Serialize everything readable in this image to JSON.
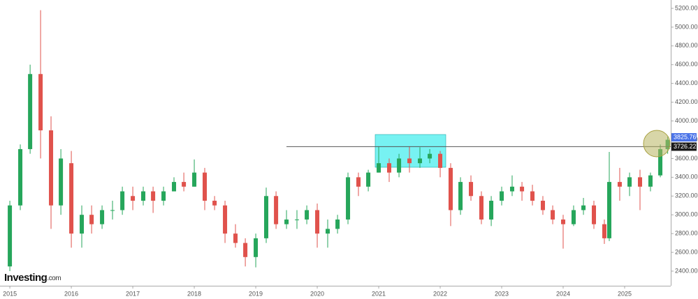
{
  "chart_data": {
    "type": "candlestick",
    "logo": {
      "brand": "Investing",
      "suffix": ".com"
    },
    "x": [
      2015.0,
      2015.17,
      2015.33,
      2015.5,
      2015.67,
      2015.83,
      2016.0,
      2016.17,
      2016.33,
      2016.5,
      2016.67,
      2016.83,
      2017.0,
      2017.17,
      2017.33,
      2017.5,
      2017.67,
      2017.83,
      2018.0,
      2018.17,
      2018.33,
      2018.5,
      2018.67,
      2018.83,
      2019.0,
      2019.17,
      2019.33,
      2019.5,
      2019.67,
      2019.83,
      2020.0,
      2020.17,
      2020.33,
      2020.5,
      2020.67,
      2020.83,
      2021.0,
      2021.17,
      2021.33,
      2021.5,
      2021.67,
      2021.83,
      2022.0,
      2022.17,
      2022.33,
      2022.5,
      2022.67,
      2022.83,
      2023.0,
      2023.17,
      2023.33,
      2023.5,
      2023.67,
      2023.83,
      2024.0,
      2024.17,
      2024.33,
      2024.5,
      2024.67,
      2024.75,
      2024.92,
      2025.08,
      2025.25,
      2025.42,
      2025.58,
      2025.7
    ],
    "open": [
      2450,
      3100,
      3700,
      4500,
      3900,
      3100,
      3550,
      2800,
      3000,
      2900,
      3050,
      3050,
      3200,
      3150,
      3250,
      3150,
      3250,
      3350,
      3300,
      3450,
      3150,
      3100,
      2800,
      2700,
      2550,
      2750,
      3200,
      2900,
      2950,
      2950,
      3050,
      2800,
      2850,
      2950,
      3400,
      3300,
      3450,
      3550,
      3450,
      3600,
      3550,
      3600,
      3650,
      3500,
      3050,
      3350,
      3200,
      2950,
      3150,
      3250,
      3300,
      3250,
      3150,
      3050,
      2950,
      2900,
      3050,
      3100,
      2900,
      2750,
      3350,
      3300,
      3400,
      3300,
      3420,
      3700
    ],
    "high": [
      3150,
      3750,
      4600,
      5180,
      4050,
      3700,
      3680,
      3100,
      3100,
      3100,
      3150,
      3300,
      3300,
      3300,
      3300,
      3300,
      3400,
      3450,
      3590,
      3500,
      3200,
      3150,
      2900,
      2750,
      2800,
      3290,
      3250,
      3050,
      3050,
      3100,
      3120,
      2950,
      3000,
      3450,
      3450,
      3480,
      3730,
      3600,
      3650,
      3730,
      3720,
      3700,
      3680,
      3550,
      3400,
      3420,
      3250,
      3200,
      3300,
      3420,
      3350,
      3320,
      3200,
      3100,
      3000,
      3100,
      3180,
      3150,
      2950,
      3670,
      3500,
      3450,
      3480,
      3450,
      3750,
      3830
    ],
    "low": [
      2400,
      3050,
      3650,
      3600,
      2850,
      3000,
      2650,
      2650,
      2800,
      2850,
      2950,
      3000,
      3050,
      3100,
      3020,
      3100,
      3250,
      3250,
      3300,
      3050,
      3050,
      2700,
      2650,
      2450,
      2440,
      2700,
      2850,
      2850,
      2850,
      2900,
      2650,
      2650,
      2800,
      2900,
      3200,
      3250,
      3450,
      3350,
      3400,
      3450,
      3500,
      3550,
      3400,
      2880,
      3000,
      3150,
      2900,
      2880,
      3100,
      3200,
      3150,
      3100,
      3000,
      2900,
      2640,
      2880,
      3000,
      2850,
      2690,
      2720,
      3150,
      3200,
      3050,
      3250,
      3400,
      3650
    ],
    "close": [
      3100,
      3700,
      4500,
      3900,
      3100,
      3600,
      2800,
      3000,
      2900,
      3050,
      3050,
      3250,
      3150,
      3250,
      3150,
      3250,
      3350,
      3300,
      3450,
      3150,
      3100,
      2800,
      2700,
      2550,
      2750,
      3200,
      2900,
      2950,
      2950,
      3050,
      2800,
      2850,
      2950,
      3400,
      3300,
      3450,
      3550,
      3450,
      3600,
      3550,
      3600,
      3650,
      3500,
      3050,
      3350,
      3200,
      2950,
      3150,
      3250,
      3300,
      3250,
      3150,
      3050,
      2950,
      2900,
      3050,
      3100,
      2900,
      2750,
      3350,
      3300,
      3400,
      3300,
      3420,
      3700,
      3800
    ],
    "up_color": "#26a65b",
    "down_color": "#e0524c",
    "xlim": [
      2014.84,
      2025.75
    ],
    "xticks": [
      2015,
      2016,
      2017,
      2018,
      2019,
      2020,
      2021,
      2022,
      2023,
      2024,
      2025
    ],
    "ylim": [
      2244,
      5289
    ],
    "yticks": [
      {
        "value": 2400,
        "label": "2400.00"
      },
      {
        "value": 2600,
        "label": "2600.00"
      },
      {
        "value": 2800,
        "label": "2800.00"
      },
      {
        "value": 3000,
        "label": "3000.00"
      },
      {
        "value": 3200,
        "label": "3200.00"
      },
      {
        "value": 3400,
        "label": "3400.00"
      },
      {
        "value": 3600,
        "label": "3600.00"
      },
      {
        "value": 3800,
        "label": "3800.00"
      },
      {
        "value": 4000,
        "label": "4000.00"
      },
      {
        "value": 4200,
        "label": "4200.00"
      },
      {
        "value": 4400,
        "label": "4400.00"
      },
      {
        "value": 4600,
        "label": "4600.00"
      },
      {
        "value": 4800,
        "label": "4800.00"
      },
      {
        "value": 5000,
        "label": "5000.00"
      },
      {
        "value": 5200,
        "label": "5200.00"
      }
    ],
    "price_labels": [
      {
        "value": 3825.76,
        "label": "3825.76",
        "color": "#4a73e8"
      },
      {
        "value": 3726.22,
        "label": "3726.22",
        "color": "#1a1a1a"
      }
    ]
  }
}
